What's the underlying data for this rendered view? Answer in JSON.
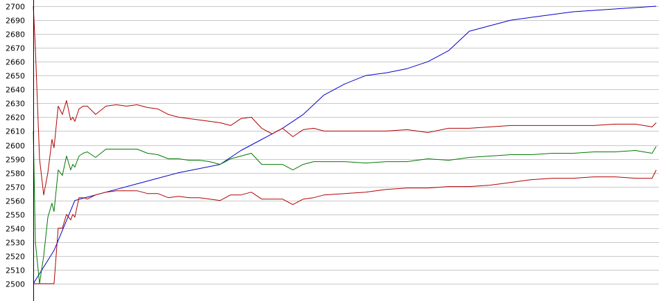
{
  "chart_data": {
    "type": "line",
    "title": "",
    "xlabel": "",
    "ylabel": "",
    "ylim": [
      2500,
      2700
    ],
    "y_ticks": [
      "2500",
      "2510",
      "2520",
      "2530",
      "2540",
      "2550",
      "2560",
      "2570",
      "2580",
      "2590",
      "2600",
      "2610",
      "2620",
      "2630",
      "2640",
      "2650",
      "2660",
      "2670",
      "2680",
      "2690",
      "2700"
    ],
    "grid": "horizontal",
    "legend": "none",
    "background": "#ffffff",
    "grid_color": "#c8c8c8",
    "axis_color": "#000000",
    "series": [
      {
        "color": "#0000cc",
        "x": [
          0,
          10,
          20,
          30,
          40,
          50,
          60,
          70,
          80,
          90,
          100,
          110,
          120,
          130,
          140,
          150,
          160,
          170,
          180,
          190,
          200,
          210,
          220,
          230,
          240,
          250,
          260,
          270,
          280,
          290,
          300
        ],
        "values": [
          2500,
          2524,
          2560,
          2564,
          2568,
          2572,
          2576,
          2580,
          2583,
          2586,
          2596,
          2604,
          2612,
          2622,
          2636,
          2644,
          2650,
          2652,
          2655,
          2660,
          2668,
          2682,
          2686,
          2690,
          2692,
          2694,
          2696,
          2697,
          2698,
          2699,
          2700
        ]
      },
      {
        "color": "#b00000",
        "x": [
          0,
          1,
          3,
          5,
          7,
          9,
          10,
          12,
          14,
          16,
          18,
          19,
          20,
          22,
          24,
          26,
          30,
          35,
          40,
          45,
          50,
          55,
          60,
          65,
          70,
          75,
          80,
          85,
          90,
          95,
          100,
          105,
          110,
          115,
          120,
          125,
          130,
          135,
          140,
          150,
          160,
          170,
          180,
          190,
          200,
          210,
          220,
          230,
          240,
          250,
          260,
          270,
          280,
          290,
          298,
          300
        ],
        "values": [
          2700,
          2670,
          2590,
          2564,
          2580,
          2604,
          2598,
          2628,
          2622,
          2632,
          2618,
          2620,
          2617,
          2626,
          2628,
          2628,
          2622,
          2628,
          2629,
          2628,
          2629,
          2627,
          2626,
          2622,
          2620,
          2619,
          2618,
          2617,
          2616,
          2614,
          2619,
          2620,
          2612,
          2608,
          2612,
          2606,
          2611,
          2612,
          2610,
          2610,
          2610,
          2610,
          2611,
          2609,
          2612,
          2612,
          2613,
          2614,
          2614,
          2614,
          2614,
          2614,
          2615,
          2615,
          2613,
          2616
        ]
      },
      {
        "color": "#007700",
        "x": [
          0,
          1,
          3,
          5,
          7,
          9,
          10,
          12,
          14,
          16,
          18,
          19,
          20,
          22,
          24,
          26,
          30,
          35,
          40,
          45,
          50,
          55,
          60,
          65,
          70,
          75,
          80,
          85,
          90,
          95,
          100,
          105,
          110,
          115,
          120,
          125,
          130,
          135,
          140,
          150,
          160,
          170,
          180,
          190,
          200,
          210,
          220,
          230,
          240,
          250,
          260,
          270,
          280,
          290,
          298,
          300
        ],
        "values": [
          2610,
          2530,
          2500,
          2520,
          2548,
          2558,
          2552,
          2582,
          2578,
          2592,
          2582,
          2586,
          2584,
          2592,
          2594,
          2595,
          2591,
          2597,
          2597,
          2597,
          2597,
          2594,
          2593,
          2590,
          2590,
          2589,
          2589,
          2588,
          2586,
          2590,
          2592,
          2594,
          2586,
          2586,
          2586,
          2582,
          2586,
          2588,
          2588,
          2588,
          2587,
          2588,
          2588,
          2590,
          2589,
          2591,
          2592,
          2593,
          2593,
          2594,
          2594,
          2595,
          2595,
          2596,
          2594,
          2599
        ]
      },
      {
        "color": "#b00000",
        "x": [
          0,
          1,
          3,
          5,
          7,
          9,
          10,
          12,
          14,
          16,
          18,
          19,
          20,
          22,
          24,
          26,
          30,
          35,
          40,
          45,
          50,
          55,
          60,
          65,
          70,
          75,
          80,
          85,
          90,
          95,
          100,
          105,
          110,
          115,
          120,
          125,
          130,
          135,
          140,
          150,
          160,
          170,
          180,
          190,
          200,
          210,
          220,
          230,
          240,
          250,
          260,
          270,
          280,
          290,
          298,
          300
        ],
        "values": [
          2500,
          2500,
          2500,
          2500,
          2500,
          2500,
          2500,
          2540,
          2540,
          2550,
          2546,
          2550,
          2548,
          2562,
          2562,
          2561,
          2564,
          2566,
          2567,
          2567,
          2567,
          2565,
          2565,
          2562,
          2563,
          2562,
          2562,
          2561,
          2560,
          2564,
          2564,
          2566,
          2561,
          2561,
          2561,
          2557,
          2561,
          2562,
          2564,
          2565,
          2566,
          2568,
          2569,
          2569,
          2570,
          2570,
          2571,
          2573,
          2575,
          2576,
          2576,
          2577,
          2577,
          2576,
          2576,
          2582
        ]
      }
    ]
  }
}
